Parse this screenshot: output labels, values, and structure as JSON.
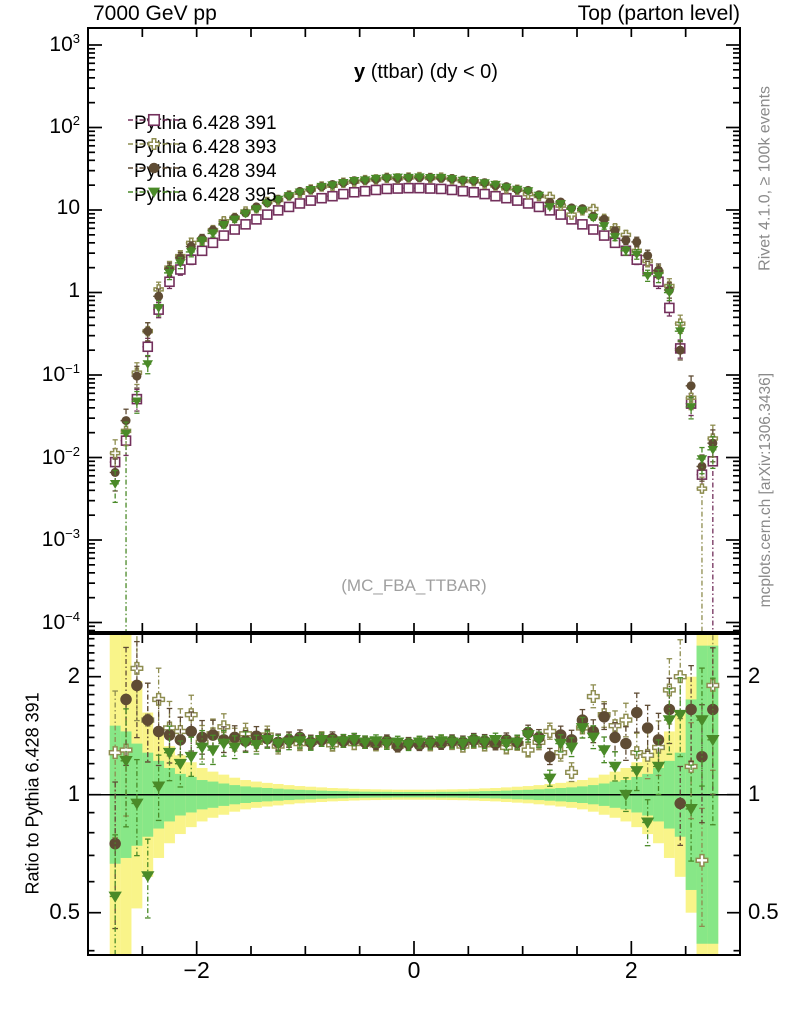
{
  "header": {
    "left_title": "7000 GeV pp",
    "right_title": "Top (parton level)"
  },
  "main_panel": {
    "observable_bold": "y",
    "observable_rest": " (ttbar) (dy < 0)",
    "watermark": "(MC_FBA_TTBAR)",
    "ytick_exponents": [
      3,
      2,
      1,
      0,
      -1,
      -2,
      -3,
      -4
    ]
  },
  "ratio_panel": {
    "ylabel": "Ratio to Pythia 6.428 391",
    "yticks": [
      {
        "label": "2",
        "value": 2
      },
      {
        "label": "1",
        "value": 1
      },
      {
        "label": "0.5",
        "value": 0.5
      }
    ]
  },
  "xticks": [
    {
      "label": "-2",
      "value": -2
    },
    {
      "label": "0",
      "value": 0
    },
    {
      "label": "2",
      "value": 2
    }
  ],
  "side_notes": {
    "right_top": "Rivet 4.1.0, ≥ 100k events",
    "right_bottom": "mcplots.cern.ch [arXiv:1306.3436]"
  },
  "legend": [
    {
      "label": "Pythia 6.428 391",
      "marker": "square-open",
      "color": "#73305c"
    },
    {
      "label": "Pythia 6.428 393",
      "marker": "cross-open",
      "color": "#8e8d50"
    },
    {
      "label": "Pythia 6.428 394",
      "marker": "circle-filled",
      "color": "#5f4c34"
    },
    {
      "label": "Pythia 6.428 395",
      "marker": "triangle-down-filled",
      "color": "#4a8a28"
    }
  ],
  "colors": {
    "band_yellow": "#f9f489",
    "band_green": "#87e787",
    "frame": "#000000",
    "note_gray": "#8a8a8a",
    "watermark_gray": "#9f9f9f"
  },
  "chart_data": {
    "type": "scatter",
    "title": "y (ttbar) (dy < 0)",
    "subtitle_left": "7000 GeV pp",
    "subtitle_right": "Top (parton level)",
    "xlim": [
      -3.0,
      3.0
    ],
    "bin_width": 0.1,
    "x": [
      -2.75,
      -2.65,
      -2.55,
      -2.45,
      -2.35,
      -2.25,
      -2.15,
      -2.05,
      -1.95,
      -1.85,
      -1.75,
      -1.65,
      -1.55,
      -1.45,
      -1.35,
      -1.25,
      -1.15,
      -1.05,
      -0.95,
      -0.85,
      -0.75,
      -0.65,
      -0.55,
      -0.45,
      -0.35,
      -0.25,
      -0.15,
      -0.05,
      0.05,
      0.15,
      0.25,
      0.35,
      0.45,
      0.55,
      0.65,
      0.75,
      0.85,
      0.95,
      1.05,
      1.15,
      1.25,
      1.35,
      1.45,
      1.55,
      1.65,
      1.75,
      1.85,
      1.95,
      2.05,
      2.15,
      2.25,
      2.35,
      2.45,
      2.55,
      2.65,
      2.75
    ],
    "main": {
      "yscale": "log",
      "ylim": [
        7.7e-05,
        1600
      ],
      "series": [
        {
          "name": "Pythia 6.428 391",
          "marker": "square-open",
          "color": "#73305c",
          "values": [
            0.0088,
            0.016,
            0.051,
            0.22,
            0.62,
            1.35,
            1.9,
            2.5,
            3.2,
            4.0,
            4.9,
            5.8,
            6.7,
            7.7,
            8.8,
            9.9,
            10.9,
            12.0,
            13.0,
            13.9,
            14.7,
            15.6,
            16.4,
            16.9,
            17.5,
            18.0,
            18.2,
            18.4,
            18.4,
            18.2,
            18.0,
            17.5,
            16.9,
            16.4,
            15.6,
            14.7,
            13.9,
            13.0,
            12.0,
            10.9,
            9.9,
            8.8,
            7.7,
            6.7,
            5.8,
            4.9,
            4.0,
            3.2,
            2.5,
            1.9,
            1.35,
            0.65,
            0.21,
            0.045,
            0.0062,
            0.009
          ]
        },
        {
          "name": "Pythia 6.428 393",
          "marker": "cross-open",
          "color": "#8e8d50",
          "values": [
            0.0113,
            0.021,
            0.107,
            0.34,
            1.09,
            2.0,
            2.76,
            4.0,
            4.35,
            5.7,
            7.3,
            8.0,
            9.6,
            10.5,
            12.5,
            13.2,
            15.0,
            16.2,
            17.7,
            19.3,
            19.7,
            21.4,
            22.1,
            23.0,
            23.5,
            24.5,
            24.2,
            24.8,
            25.0,
            24.4,
            24.7,
            23.6,
            22.5,
            22.3,
            20.9,
            19.8,
            18.3,
            17.6,
            15.6,
            14.8,
            14.4,
            11.3,
            8.8,
            9.9,
            10.3,
            7.8,
            6.0,
            5.0,
            3.2,
            2.4,
            1.78,
            1.2,
            0.42,
            0.053,
            0.0042,
            0.017
          ]
        },
        {
          "name": "Pythia 6.428 394",
          "marker": "circle-filled",
          "color": "#5f4c34",
          "values": [
            0.0066,
            0.028,
            0.097,
            0.34,
            0.9,
            1.92,
            2.62,
            3.6,
            4.5,
            5.7,
            6.8,
            8.1,
            9.2,
            10.9,
            12.2,
            13.5,
            15.0,
            16.8,
            17.7,
            19.2,
            20.4,
            21.4,
            22.6,
            23.0,
            23.6,
            24.7,
            24.2,
            24.8,
            24.7,
            24.8,
            24.3,
            24.0,
            23.0,
            22.6,
            21.4,
            19.8,
            19.2,
            17.7,
            17.3,
            15.3,
            12.4,
            12.5,
            10.6,
            10.4,
            8.4,
            7.7,
            5.6,
            4.3,
            4.1,
            2.8,
            1.86,
            1.07,
            0.2,
            0.074,
            0.0078,
            0.0149
          ]
        },
        {
          "name": "Pythia 6.428 395",
          "marker": "triangle-down-filled",
          "color": "#4a8a28",
          "values": [
            0.0048,
            0.0195,
            0.048,
            0.136,
            0.65,
            1.73,
            2.28,
            3.1,
            4.2,
            5.2,
            6.6,
            7.7,
            9.1,
            10.3,
            12.1,
            13.4,
            14.8,
            16.4,
            17.6,
            19.2,
            20.0,
            21.4,
            22.6,
            23.0,
            24.0,
            24.3,
            24.8,
            24.7,
            25.0,
            24.6,
            24.7,
            23.8,
            22.8,
            22.5,
            21.2,
            20.3,
            18.8,
            17.7,
            17.0,
            15.0,
            10.9,
            11.9,
            10.2,
            9.9,
            8.1,
            6.4,
            4.7,
            3.2,
            2.9,
            1.6,
            1.59,
            1.0,
            0.34,
            0.041,
            0.0096,
            0.0124
          ]
        }
      ],
      "long_error_bars": [
        {
          "series": "Pythia 6.428 395",
          "x": -2.65
        },
        {
          "series": "Pythia 6.428 393",
          "x": 2.65
        },
        {
          "series": "Pythia 6.428 391",
          "x": 2.75
        }
      ]
    },
    "ratio": {
      "yscale": "log",
      "ylim": [
        0.39,
        2.57
      ],
      "reference": "Pythia 6.428 391",
      "series": [
        {
          "name": "Pythia 6.428 393",
          "marker": "cross-open",
          "color": "#8e8d50",
          "values": [
            1.28,
            1.3,
            2.1,
            1.55,
            1.75,
            1.48,
            1.45,
            1.6,
            1.36,
            1.43,
            1.49,
            1.38,
            1.43,
            1.36,
            1.42,
            1.33,
            1.38,
            1.35,
            1.36,
            1.39,
            1.34,
            1.37,
            1.35,
            1.36,
            1.34,
            1.36,
            1.33,
            1.35,
            1.36,
            1.34,
            1.37,
            1.35,
            1.33,
            1.36,
            1.34,
            1.35,
            1.32,
            1.35,
            1.3,
            1.36,
            1.45,
            1.28,
            1.14,
            1.48,
            1.78,
            1.6,
            1.5,
            1.55,
            1.28,
            1.26,
            1.32,
            1.85,
            2.0,
            1.18,
            0.68,
            1.9
          ]
        },
        {
          "name": "Pythia 6.428 394",
          "marker": "circle-filled",
          "color": "#5f4c34",
          "values": [
            0.75,
            1.75,
            1.9,
            1.55,
            1.45,
            1.42,
            1.38,
            1.45,
            1.4,
            1.42,
            1.38,
            1.4,
            1.37,
            1.41,
            1.39,
            1.36,
            1.38,
            1.4,
            1.36,
            1.38,
            1.39,
            1.37,
            1.38,
            1.36,
            1.35,
            1.37,
            1.33,
            1.35,
            1.34,
            1.36,
            1.35,
            1.37,
            1.36,
            1.38,
            1.37,
            1.35,
            1.38,
            1.36,
            1.44,
            1.4,
            1.25,
            1.42,
            1.38,
            1.55,
            1.45,
            1.58,
            1.4,
            1.35,
            1.62,
            1.48,
            1.38,
            1.65,
            0.95,
            1.65,
            1.25,
            1.65
          ]
        },
        {
          "name": "Pythia 6.428 395",
          "marker": "triangle-down-filled",
          "color": "#4a8a28",
          "values": [
            0.55,
            1.22,
            0.95,
            0.62,
            1.05,
            1.28,
            1.2,
            1.25,
            1.32,
            1.3,
            1.35,
            1.32,
            1.36,
            1.34,
            1.38,
            1.35,
            1.36,
            1.37,
            1.35,
            1.38,
            1.36,
            1.37,
            1.38,
            1.36,
            1.37,
            1.35,
            1.36,
            1.34,
            1.36,
            1.35,
            1.37,
            1.36,
            1.35,
            1.37,
            1.36,
            1.38,
            1.35,
            1.36,
            1.42,
            1.38,
            1.1,
            1.35,
            1.32,
            1.48,
            1.4,
            1.3,
            1.18,
            1.0,
            1.15,
            0.85,
            1.18,
            1.55,
            1.6,
            0.92,
            1.55,
            1.38
          ]
        }
      ],
      "band_yellow_hi": [
        2.6,
        2.6,
        1.95,
        1.62,
        1.45,
        1.33,
        1.26,
        1.21,
        1.17,
        1.145,
        1.125,
        1.105,
        1.09,
        1.08,
        1.072,
        1.065,
        1.058,
        1.052,
        1.048,
        1.044,
        1.04,
        1.038,
        1.035,
        1.033,
        1.032,
        1.031,
        1.03,
        1.03,
        1.03,
        1.03,
        1.031,
        1.032,
        1.033,
        1.035,
        1.038,
        1.04,
        1.044,
        1.048,
        1.052,
        1.058,
        1.065,
        1.072,
        1.08,
        1.09,
        1.105,
        1.125,
        1.145,
        1.17,
        1.21,
        1.26,
        1.33,
        1.45,
        1.62,
        2.0,
        2.6,
        2.6
      ],
      "band_green_hi": [
        1.5,
        1.45,
        1.35,
        1.28,
        1.22,
        1.17,
        1.13,
        1.11,
        1.09,
        1.08,
        1.068,
        1.058,
        1.05,
        1.044,
        1.04,
        1.036,
        1.032,
        1.029,
        1.027,
        1.024,
        1.022,
        1.021,
        1.019,
        1.018,
        1.017,
        1.017,
        1.016,
        1.016,
        1.016,
        1.016,
        1.017,
        1.017,
        1.018,
        1.019,
        1.021,
        1.022,
        1.024,
        1.027,
        1.029,
        1.032,
        1.036,
        1.04,
        1.044,
        1.05,
        1.058,
        1.068,
        1.08,
        1.09,
        1.11,
        1.13,
        1.17,
        1.22,
        1.28,
        1.75,
        2.4,
        2.4
      ]
    }
  }
}
